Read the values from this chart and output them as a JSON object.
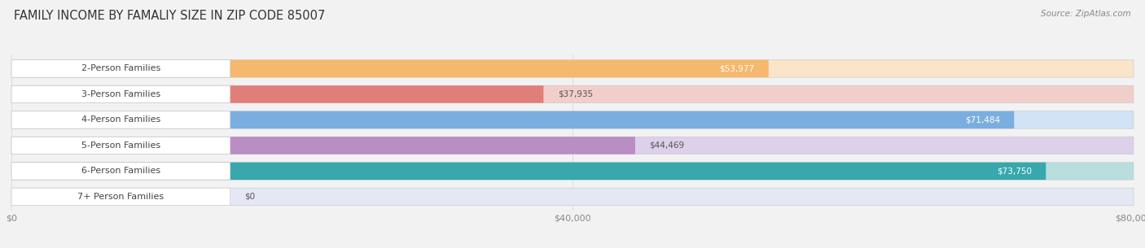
{
  "title": "FAMILY INCOME BY FAMALIY SIZE IN ZIP CODE 85007",
  "source": "Source: ZipAtlas.com",
  "categories": [
    "2-Person Families",
    "3-Person Families",
    "4-Person Families",
    "5-Person Families",
    "6-Person Families",
    "7+ Person Families"
  ],
  "values": [
    53977,
    37935,
    71484,
    44469,
    73750,
    0
  ],
  "bar_colors": [
    "#F5B86E",
    "#E07E7A",
    "#7AAEE0",
    "#B98EC4",
    "#38A8AD",
    "#B0BEDE"
  ],
  "bar_colors_light": [
    "#FAE5C8",
    "#F2CECA",
    "#D0E4F5",
    "#DDD0EA",
    "#B8DEDE",
    "#E4E8F5"
  ],
  "value_labels": [
    "$53,977",
    "$37,935",
    "$71,484",
    "$44,469",
    "$73,750",
    "$0"
  ],
  "label_in_bar": [
    true,
    false,
    true,
    false,
    true,
    false
  ],
  "xlim": [
    0,
    80000
  ],
  "xticks": [
    0,
    40000,
    80000
  ],
  "xticklabels": [
    "$0",
    "$40,000",
    "$80,000"
  ],
  "background_color": "#F2F2F2",
  "bar_height": 0.68,
  "title_fontsize": 10.5,
  "label_fontsize": 8.0,
  "value_fontsize": 7.5
}
